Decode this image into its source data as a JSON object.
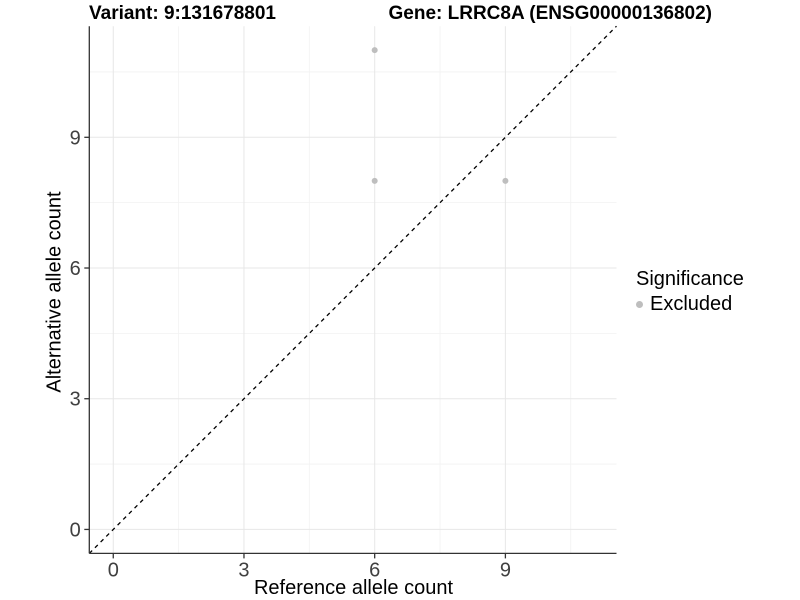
{
  "chart_data": {
    "type": "scatter",
    "title_left": "Variant: 9:131678801",
    "title_right": "Gene: LRRC8A (ENSG00000136802)",
    "xlabel": "Reference allele count",
    "ylabel": "Alternative allele count",
    "x_ticks": [
      0,
      3,
      6,
      9
    ],
    "y_ticks": [
      0,
      3,
      6,
      9
    ],
    "x_minor_ticks": [
      1.5,
      4.5,
      7.5,
      10.5
    ],
    "y_minor_ticks": [
      1.5,
      4.5,
      7.5,
      10.5
    ],
    "xlim": [
      -0.55,
      11.55
    ],
    "ylim": [
      -0.55,
      11.55
    ],
    "series": [
      {
        "name": "Excluded",
        "color": "#BEBEBE",
        "points": [
          [
            6,
            11
          ],
          [
            6,
            8
          ],
          [
            9,
            8
          ]
        ]
      }
    ],
    "reference_line": {
      "style": "dashed",
      "slope": 1,
      "intercept": 0,
      "color": "#000000"
    },
    "legend": {
      "title": "Significance",
      "position": "right",
      "items": [
        {
          "label": "Excluded",
          "color": "#BEBEBE"
        }
      ]
    },
    "grid": {
      "major": true,
      "minor": true,
      "major_color": "#E7E7E7",
      "minor_color": "#F2F2F2"
    },
    "axis": {
      "line_color": "#333333",
      "tick_color": "#333333",
      "tick_label_color": "#404040"
    }
  }
}
